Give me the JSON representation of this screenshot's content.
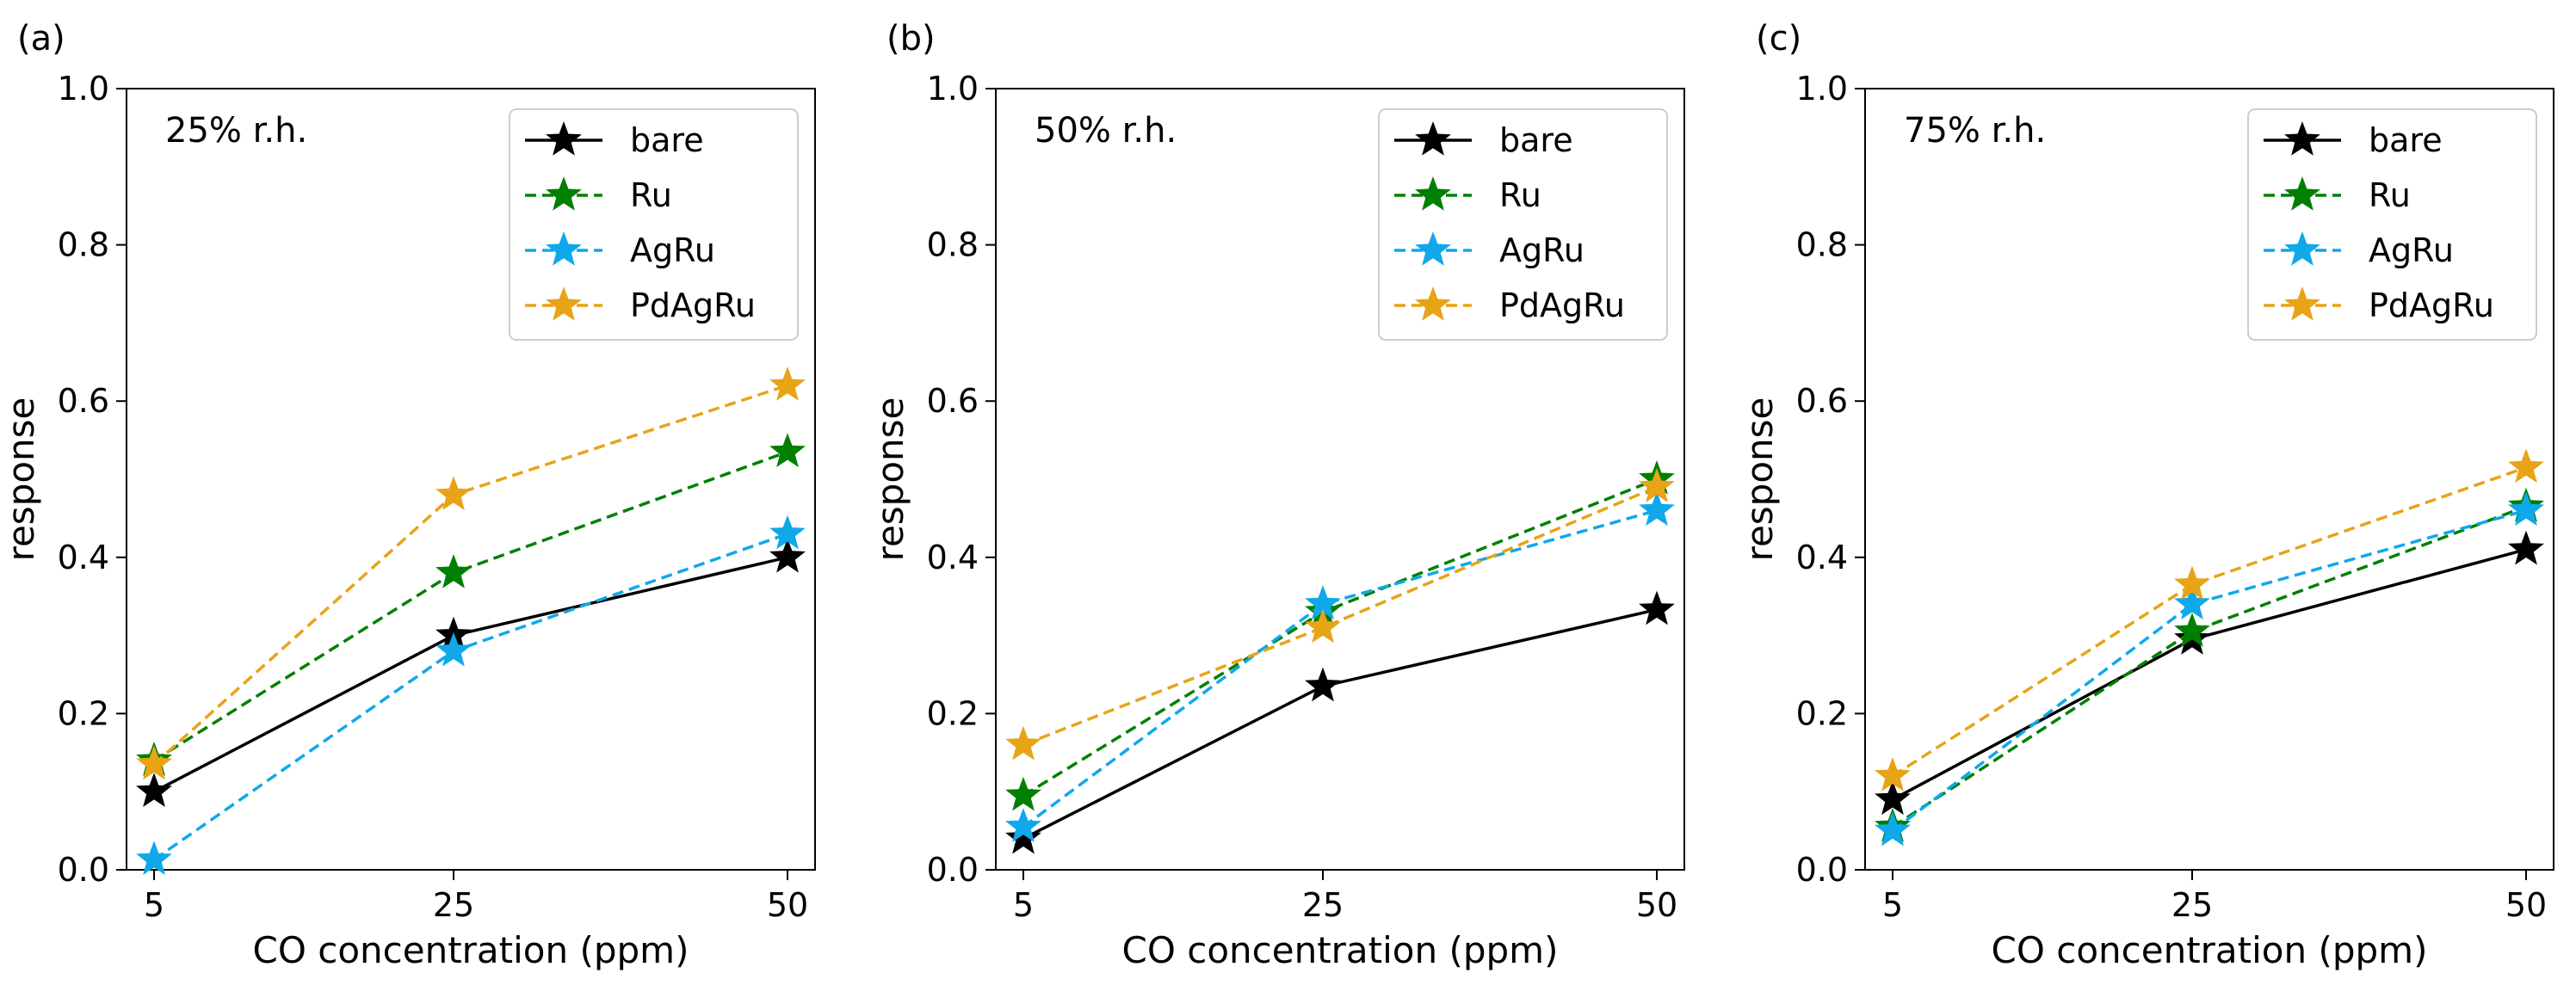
{
  "chart_data": [
    {
      "type": "line",
      "panel_tag": "(a)",
      "annotation": "25% r.h.",
      "xlabel": "CO concentration (ppm)",
      "ylabel": "response",
      "categories": [
        "5",
        "25",
        "50"
      ],
      "ylim": [
        0,
        1.0
      ],
      "yticks": [
        "0.0",
        "0.2",
        "0.4",
        "0.6",
        "0.8",
        "1.0"
      ],
      "legend_position": "top-right",
      "series": [
        {
          "name": "bare",
          "values": [
            0.1,
            0.3,
            0.4
          ],
          "color": "#000000",
          "dashed": false
        },
        {
          "name": "Ru",
          "values": [
            0.14,
            0.38,
            0.535
          ],
          "color": "#008000",
          "dashed": true
        },
        {
          "name": "AgRu",
          "values": [
            0.013,
            0.28,
            0.43
          ],
          "color": "#0fa8ea",
          "dashed": true
        },
        {
          "name": "PdAgRu",
          "values": [
            0.135,
            0.48,
            0.62
          ],
          "color": "#e8a317",
          "dashed": true
        }
      ]
    },
    {
      "type": "line",
      "panel_tag": "(b)",
      "annotation": "50% r.h.",
      "xlabel": "CO concentration (ppm)",
      "ylabel": "response",
      "categories": [
        "5",
        "25",
        "50"
      ],
      "ylim": [
        0,
        1.0
      ],
      "yticks": [
        "0.0",
        "0.2",
        "0.4",
        "0.6",
        "0.8",
        "1.0"
      ],
      "legend_position": "top-right",
      "series": [
        {
          "name": "bare",
          "values": [
            0.04,
            0.235,
            0.333
          ],
          "color": "#000000",
          "dashed": false
        },
        {
          "name": "Ru",
          "values": [
            0.095,
            0.33,
            0.5
          ],
          "color": "#008000",
          "dashed": true
        },
        {
          "name": "AgRu",
          "values": [
            0.055,
            0.34,
            0.46
          ],
          "color": "#0fa8ea",
          "dashed": true
        },
        {
          "name": "PdAgRu",
          "values": [
            0.16,
            0.31,
            0.49
          ],
          "color": "#e8a317",
          "dashed": true
        }
      ]
    },
    {
      "type": "line",
      "panel_tag": "(c)",
      "annotation": "75% r.h.",
      "xlabel": "CO concentration (ppm)",
      "ylabel": "response",
      "categories": [
        "5",
        "25",
        "50"
      ],
      "ylim": [
        0,
        1.0
      ],
      "yticks": [
        "0.0",
        "0.2",
        "0.4",
        "0.6",
        "0.8",
        "1.0"
      ],
      "legend_position": "top-right",
      "series": [
        {
          "name": "bare",
          "values": [
            0.09,
            0.295,
            0.41
          ],
          "color": "#000000",
          "dashed": false
        },
        {
          "name": "Ru",
          "values": [
            0.055,
            0.305,
            0.465
          ],
          "color": "#008000",
          "dashed": true
        },
        {
          "name": "AgRu",
          "values": [
            0.05,
            0.34,
            0.46
          ],
          "color": "#0fa8ea",
          "dashed": true
        },
        {
          "name": "PdAgRu",
          "values": [
            0.12,
            0.365,
            0.515
          ],
          "color": "#e8a317",
          "dashed": true
        }
      ]
    }
  ]
}
